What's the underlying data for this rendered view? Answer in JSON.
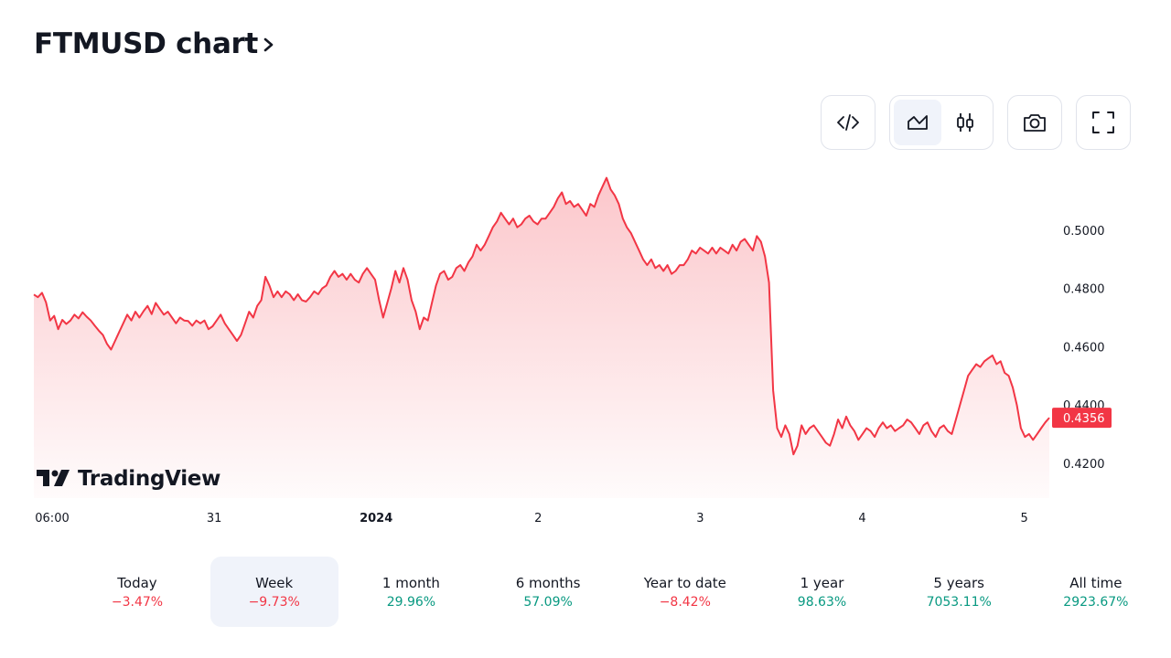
{
  "header": {
    "title": "FTMUSD chart",
    "chevron_icon": "chevron-right-icon"
  },
  "toolbar": {
    "embed_icon": "code-embed-icon",
    "area_icon": "area-chart-icon",
    "candles_icon": "candlestick-icon",
    "snapshot_icon": "camera-icon",
    "fullscreen_icon": "fullscreen-icon",
    "active_style": "area"
  },
  "chart_data": {
    "type": "area",
    "title": "",
    "xlabel": "",
    "ylabel": "",
    "y_ticks": [
      "0.5000",
      "0.4800",
      "0.4600",
      "0.4400",
      "0.4200"
    ],
    "x_ticks": [
      {
        "label": "06:00",
        "bold": false
      },
      {
        "label": "31",
        "bold": false
      },
      {
        "label": "2024",
        "bold": true
      },
      {
        "label": "2",
        "bold": false
      },
      {
        "label": "3",
        "bold": false
      },
      {
        "label": "4",
        "bold": false
      },
      {
        "label": "5",
        "bold": false
      }
    ],
    "last_price_label": "0.4356",
    "ylim": [
      0.408,
      0.521
    ],
    "line_color": "#f23645",
    "fill_color": "#f23645",
    "series": [
      {
        "values": [
          0.4779,
          0.477,
          0.4785,
          0.4752,
          0.469,
          0.4706,
          0.466,
          0.4692,
          0.4678,
          0.469,
          0.471,
          0.4697,
          0.4718,
          0.4703,
          0.469,
          0.4672,
          0.4655,
          0.464,
          0.461,
          0.459,
          0.462,
          0.465,
          0.468,
          0.471,
          0.469,
          0.472,
          0.47,
          0.4722,
          0.474,
          0.4712,
          0.475,
          0.473,
          0.471,
          0.472,
          0.47,
          0.468,
          0.47,
          0.469,
          0.4688,
          0.4672,
          0.469,
          0.468,
          0.469,
          0.466,
          0.467,
          0.469,
          0.471,
          0.468,
          0.466,
          0.464,
          0.462,
          0.464,
          0.468,
          0.472,
          0.47,
          0.474,
          0.476,
          0.484,
          0.481,
          0.477,
          0.479,
          0.477,
          0.479,
          0.478,
          0.476,
          0.478,
          0.476,
          0.4755,
          0.477,
          0.479,
          0.478,
          0.48,
          0.481,
          0.484,
          0.486,
          0.484,
          0.485,
          0.483,
          0.485,
          0.483,
          0.482,
          0.485,
          0.487,
          0.485,
          0.483,
          0.476,
          0.47,
          0.475,
          0.48,
          0.486,
          0.482,
          0.487,
          0.483,
          0.476,
          0.472,
          0.466,
          0.47,
          0.469,
          0.475,
          0.481,
          0.485,
          0.486,
          0.483,
          0.484,
          0.487,
          0.488,
          0.486,
          0.489,
          0.491,
          0.495,
          0.493,
          0.495,
          0.498,
          0.501,
          0.503,
          0.506,
          0.504,
          0.502,
          0.504,
          0.501,
          0.502,
          0.504,
          0.505,
          0.503,
          0.502,
          0.504,
          0.504,
          0.506,
          0.508,
          0.511,
          0.513,
          0.509,
          0.51,
          0.508,
          0.509,
          0.507,
          0.505,
          0.509,
          0.508,
          0.512,
          0.515,
          0.518,
          0.514,
          0.512,
          0.509,
          0.504,
          0.501,
          0.499,
          0.496,
          0.493,
          0.49,
          0.488,
          0.49,
          0.487,
          0.488,
          0.486,
          0.488,
          0.485,
          0.486,
          0.488,
          0.488,
          0.49,
          0.493,
          0.492,
          0.494,
          0.493,
          0.492,
          0.494,
          0.492,
          0.494,
          0.493,
          0.492,
          0.495,
          0.493,
          0.496,
          0.497,
          0.495,
          0.493,
          0.498,
          0.496,
          0.491,
          0.482,
          0.445,
          0.432,
          0.429,
          0.433,
          0.43,
          0.423,
          0.426,
          0.433,
          0.43,
          0.432,
          0.433,
          0.431,
          0.429,
          0.427,
          0.426,
          0.43,
          0.435,
          0.432,
          0.436,
          0.433,
          0.431,
          0.428,
          0.43,
          0.432,
          0.431,
          0.429,
          0.432,
          0.434,
          0.432,
          0.433,
          0.431,
          0.432,
          0.433,
          0.435,
          0.434,
          0.432,
          0.43,
          0.433,
          0.434,
          0.431,
          0.429,
          0.432,
          0.433,
          0.431,
          0.43,
          0.435,
          0.44,
          0.445,
          0.45,
          0.452,
          0.454,
          0.453,
          0.455,
          0.456,
          0.457,
          0.454,
          0.455,
          0.451,
          0.45,
          0.446,
          0.44,
          0.432,
          0.429,
          0.43,
          0.428,
          0.43,
          0.432,
          0.434,
          0.4356
        ]
      }
    ]
  },
  "branding": {
    "logo_text": "TradingView"
  },
  "periods": [
    {
      "label": "Today",
      "value": "−3.47%",
      "trend": "neg",
      "active": false
    },
    {
      "label": "Week",
      "value": "−9.73%",
      "trend": "neg",
      "active": true
    },
    {
      "label": "1 month",
      "value": "29.96%",
      "trend": "pos",
      "active": false
    },
    {
      "label": "6 months",
      "value": "57.09%",
      "trend": "pos",
      "active": false
    },
    {
      "label": "Year to date",
      "value": "−8.42%",
      "trend": "neg",
      "active": false
    },
    {
      "label": "1 year",
      "value": "98.63%",
      "trend": "pos",
      "active": false
    },
    {
      "label": "5 years",
      "value": "7053.11%",
      "trend": "pos",
      "active": false
    },
    {
      "label": "All time",
      "value": "2923.67%",
      "trend": "pos",
      "active": false
    }
  ]
}
